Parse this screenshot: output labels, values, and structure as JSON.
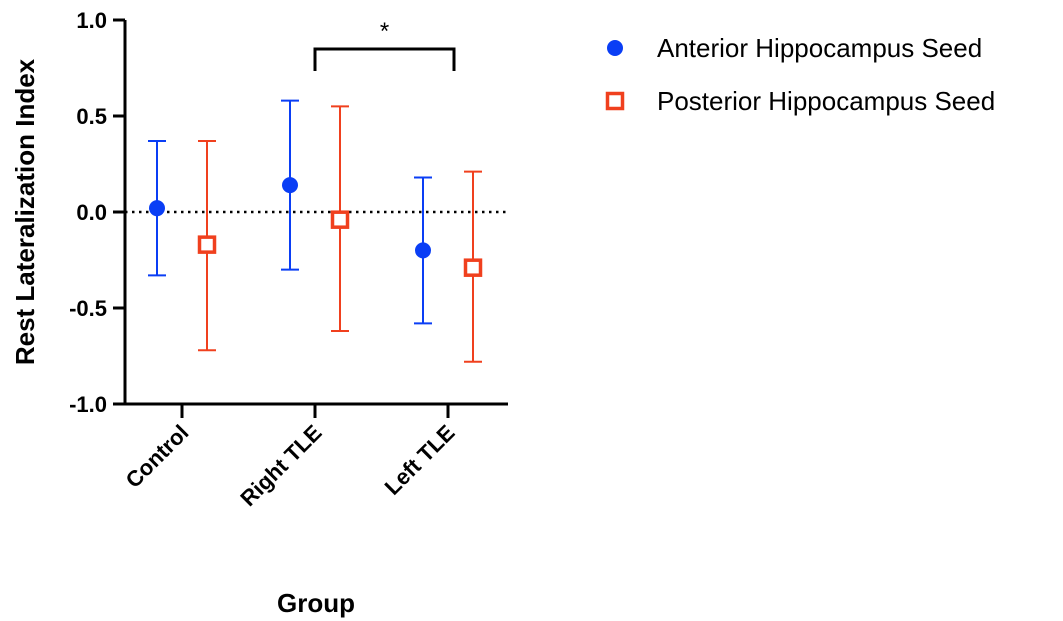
{
  "chart_data": {
    "type": "scatter",
    "title": "",
    "xlabel": "Group",
    "ylabel": "Rest Lateralization Index",
    "categories": [
      "Control",
      "Right TLE",
      "Left TLE"
    ],
    "ylim": [
      -1.0,
      1.0
    ],
    "yticks": [
      1.0,
      0.5,
      0.0,
      -0.5,
      -1.0
    ],
    "ytick_labels": [
      "1.0",
      "0.5",
      "0.0",
      "-0.5",
      "-1.0"
    ],
    "reference_line": {
      "y": 0,
      "style": "dotted"
    },
    "legend_position": "top-right",
    "series": [
      {
        "name": "Anterior Hippocampus Seed",
        "marker": "filled-circle",
        "color": "#0a3ef5",
        "values": [
          0.02,
          0.14,
          -0.2
        ],
        "error_upper": [
          0.37,
          0.58,
          0.18
        ],
        "error_lower": [
          -0.33,
          -0.3,
          -0.58
        ]
      },
      {
        "name": "Posterior Hippocampus Seed",
        "marker": "open-square",
        "color": "#f0401e",
        "values": [
          -0.17,
          -0.04,
          -0.29
        ],
        "error_upper": [
          0.37,
          0.55,
          0.21
        ],
        "error_lower": [
          -0.72,
          -0.62,
          -0.78
        ]
      }
    ],
    "annotations": [
      {
        "type": "significance-bracket",
        "from_category": "Right TLE",
        "to_category": "Left TLE",
        "label": "*"
      }
    ]
  }
}
